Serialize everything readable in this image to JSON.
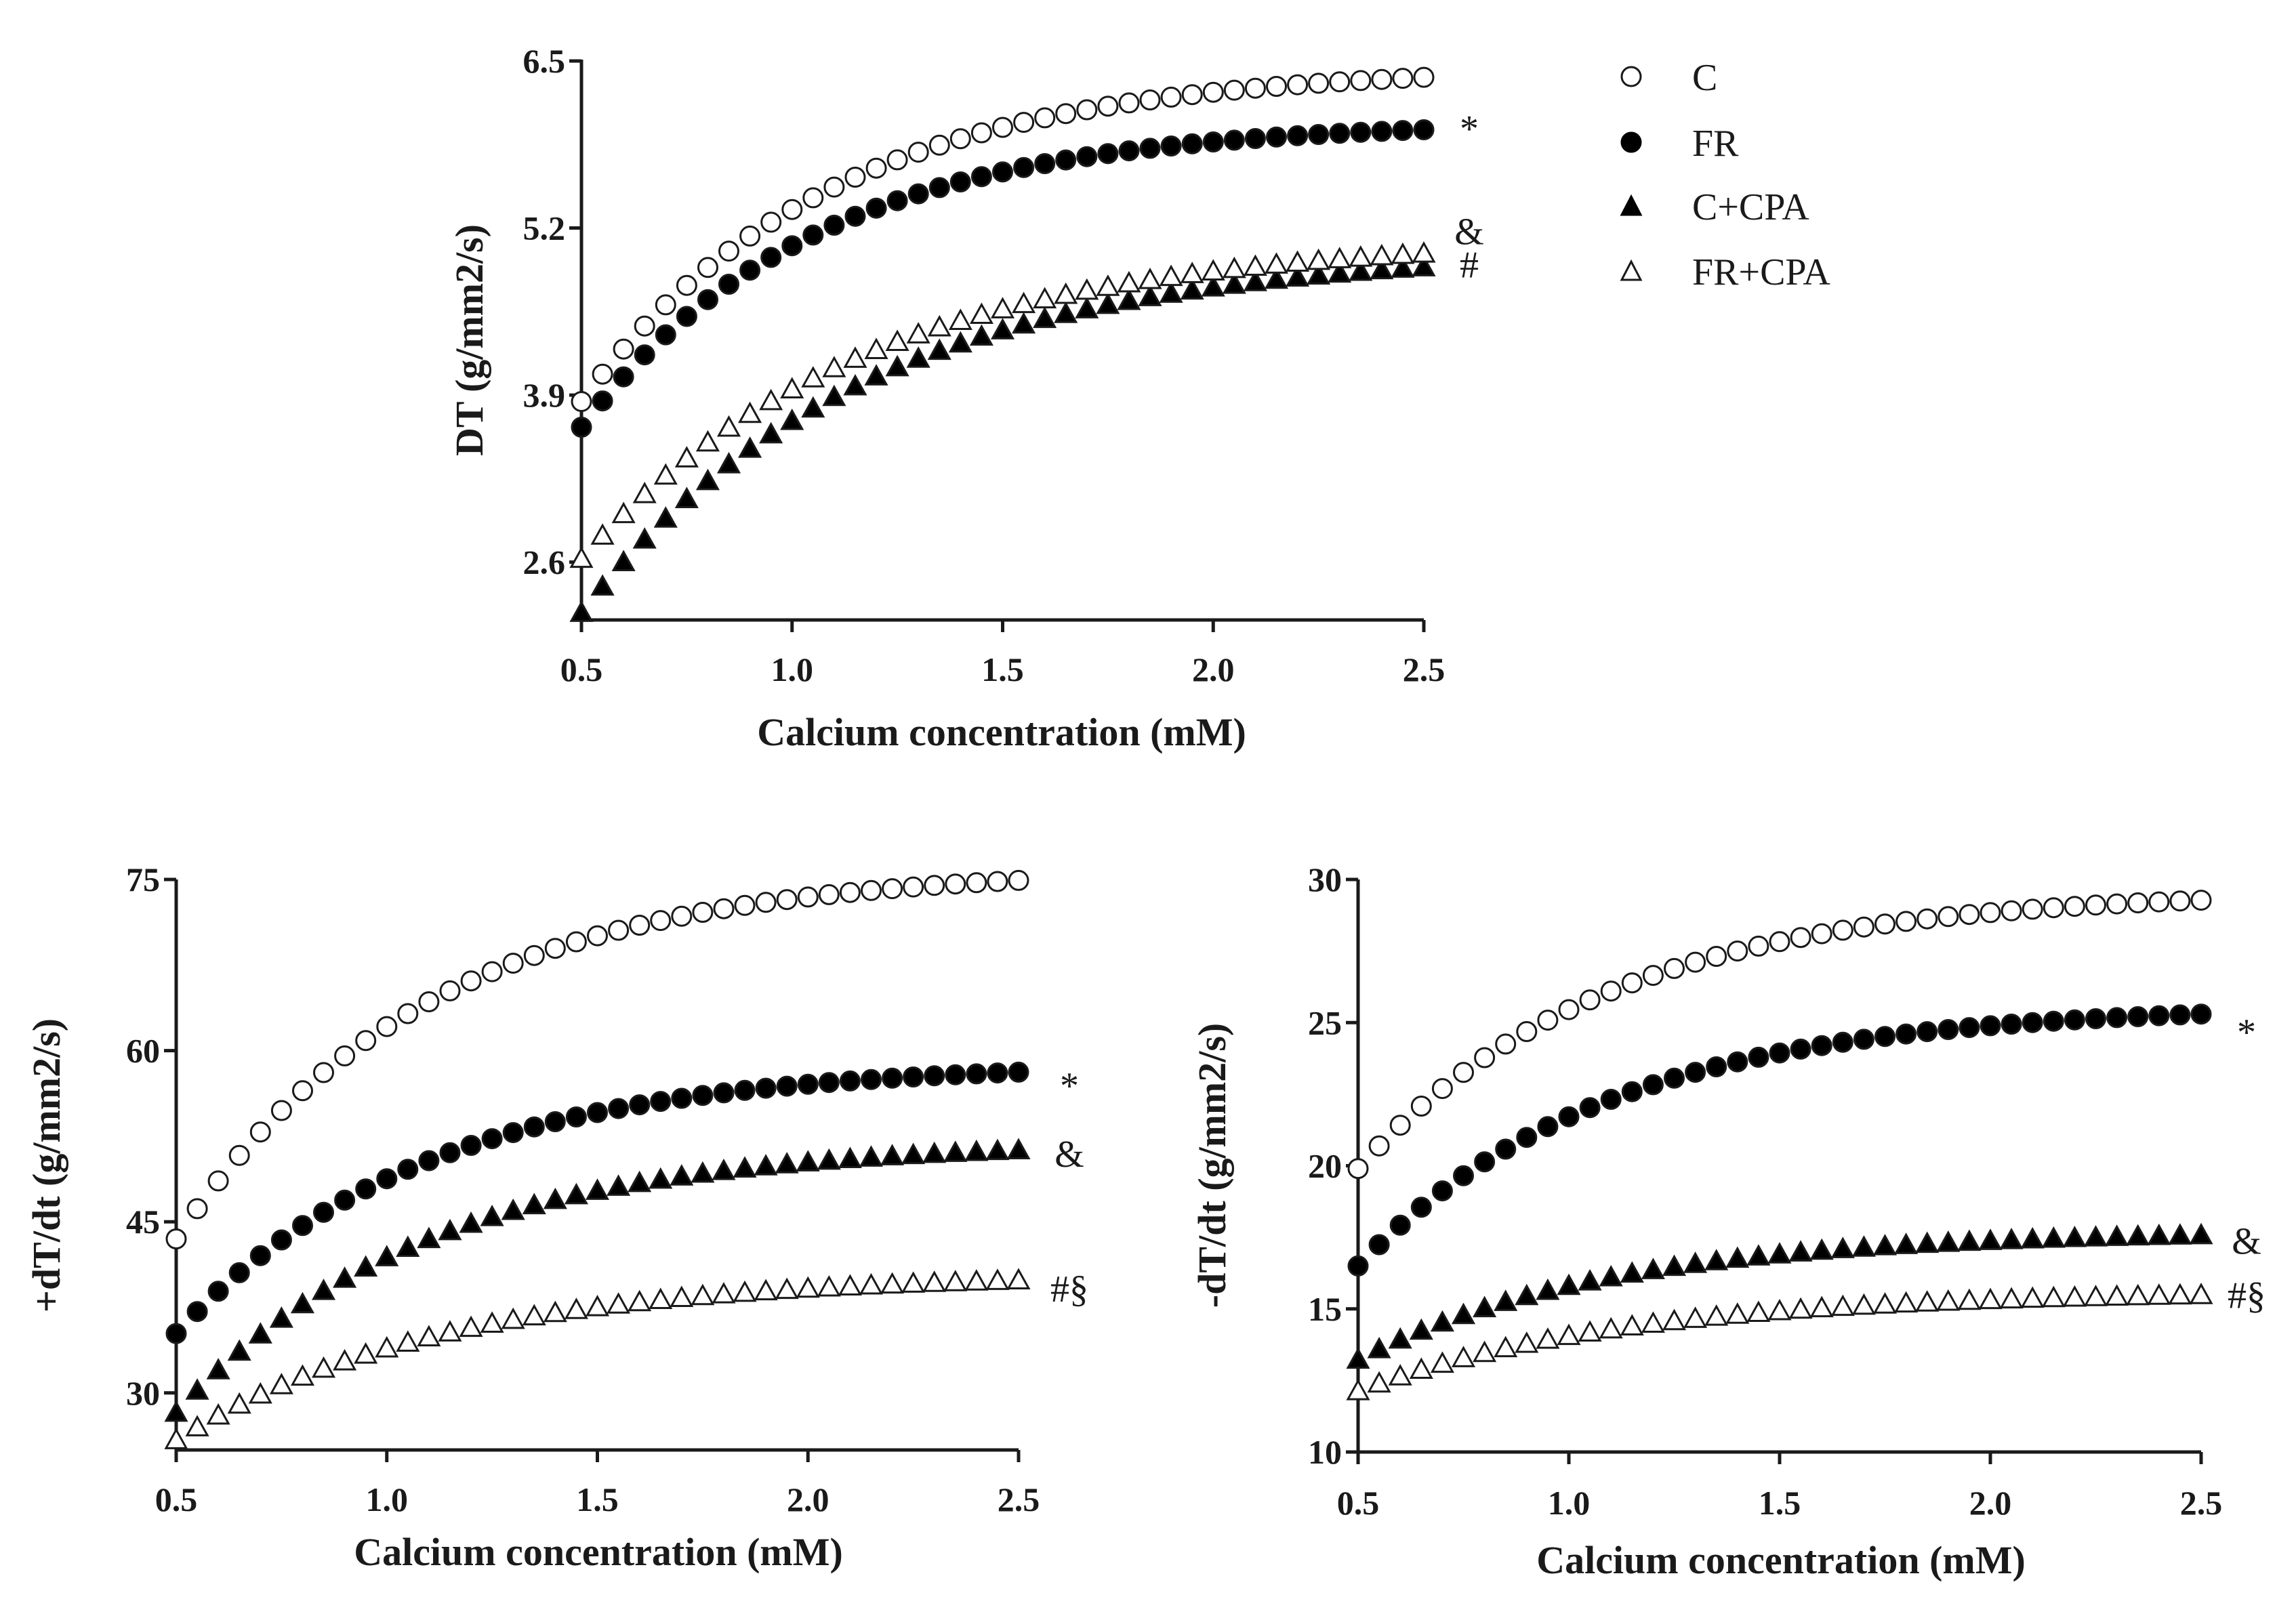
{
  "figure": {
    "legend": [
      {
        "label": "C",
        "marker": "circle-open"
      },
      {
        "label": "FR",
        "marker": "circle-filled"
      },
      {
        "label": "C+CPA",
        "marker": "triangle-filled"
      },
      {
        "label": "FR+CPA",
        "marker": "triangle-open"
      }
    ]
  },
  "chart_data": [
    {
      "id": "dt",
      "type": "scatter",
      "title": "",
      "xlabel": "Calcium concentration (mM)",
      "ylabel": "DT (g/mm2/s)",
      "xlim": [
        0.5,
        2.5
      ],
      "ylim": [
        2.15,
        6.5
      ],
      "xticks": [
        0.5,
        1.0,
        1.5,
        2.0,
        2.5
      ],
      "xtick_labels": [
        "0.5",
        "1.0",
        "1.5",
        "2.0",
        "2.5"
      ],
      "yticks": [
        2.6,
        3.9,
        5.2,
        6.5
      ],
      "ytick_labels": [
        "2.6",
        "3.9",
        "5.2",
        "6.5"
      ],
      "x_start": 0.5,
      "x_end": 2.5,
      "x_step": 0.05,
      "series": [
        {
          "name": "C",
          "marker": "circle-open",
          "y0": 3.85,
          "ymax": 6.46,
          "rate": 1.7
        },
        {
          "name": "FR",
          "marker": "circle-filled",
          "y0": 3.65,
          "ymax": 6.03,
          "rate": 1.8
        },
        {
          "name": "C+CPA",
          "marker": "triangle-filled",
          "y0": 2.2,
          "ymax": 5.03,
          "rate": 1.5
        },
        {
          "name": "FR+CPA",
          "marker": "triangle-open",
          "y0": 2.62,
          "ymax": 5.12,
          "rate": 1.5
        }
      ],
      "annotations": [
        {
          "text": "*",
          "y": 5.98
        },
        {
          "text": "&",
          "y": 5.18
        },
        {
          "text": "#",
          "y": 4.92
        }
      ]
    },
    {
      "id": "pos_dtdt",
      "type": "scatter",
      "title": "",
      "xlabel": "Calcium concentration (mM)",
      "ylabel": "+dT/dt (g/mm2/s)",
      "xlim": [
        0.5,
        2.5
      ],
      "ylim": [
        25,
        75
      ],
      "xticks": [
        0.5,
        1.0,
        1.5,
        2.0,
        2.5
      ],
      "xtick_labels": [
        "0.5",
        "1.0",
        "1.5",
        "2.0",
        "2.5"
      ],
      "yticks": [
        30,
        45,
        60,
        75
      ],
      "ytick_labels": [
        "30",
        "45",
        "60",
        "75"
      ],
      "x_start": 0.5,
      "x_end": 2.5,
      "x_step": 0.05,
      "series": [
        {
          "name": "C",
          "marker": "circle-open",
          "y0": 43.5,
          "ymax": 76.0,
          "rate": 1.7
        },
        {
          "name": "FR",
          "marker": "circle-filled",
          "y0": 35.2,
          "ymax": 58.9,
          "rate": 1.7
        },
        {
          "name": "C+CPA",
          "marker": "triangle-filled",
          "y0": 28.2,
          "ymax": 52.0,
          "rate": 1.7
        },
        {
          "name": "FR+CPA",
          "marker": "triangle-open",
          "y0": 25.8,
          "ymax": 40.4,
          "rate": 1.6
        }
      ],
      "annotations": [
        {
          "text": "*",
          "y": 57.0
        },
        {
          "text": "&",
          "y": 51.0
        },
        {
          "text": "#§",
          "y": 39.2
        }
      ]
    },
    {
      "id": "neg_dtdt",
      "type": "scatter",
      "title": "",
      "xlabel": "Calcium concentration (mM)",
      "ylabel": "-dT/dt (g/mm2/s)",
      "xlim": [
        0.5,
        2.5
      ],
      "ylim": [
        10,
        30
      ],
      "xticks": [
        0.5,
        1.0,
        1.5,
        2.0,
        2.5
      ],
      "xtick_labels": [
        "0.5",
        "1.0",
        "1.5",
        "2.0",
        "2.5"
      ],
      "yticks": [
        10,
        15,
        20,
        25,
        30
      ],
      "ytick_labels": [
        "10",
        "15",
        "20",
        "25",
        "30"
      ],
      "x_start": 0.5,
      "x_end": 2.5,
      "x_step": 0.05,
      "series": [
        {
          "name": "C",
          "marker": "circle-open",
          "y0": 19.9,
          "ymax": 29.6,
          "rate": 1.7
        },
        {
          "name": "FR",
          "marker": "circle-filled",
          "y0": 16.5,
          "ymax": 25.6,
          "rate": 1.7
        },
        {
          "name": "C+CPA",
          "marker": "triangle-filled",
          "y0": 13.2,
          "ymax": 17.7,
          "rate": 1.7
        },
        {
          "name": "FR+CPA",
          "marker": "triangle-open",
          "y0": 12.1,
          "ymax": 15.6,
          "rate": 1.6
        }
      ],
      "annotations": [
        {
          "text": "*",
          "y": 24.7
        },
        {
          "text": "&",
          "y": 17.4
        },
        {
          "text": "#§",
          "y": 15.5
        }
      ]
    }
  ]
}
